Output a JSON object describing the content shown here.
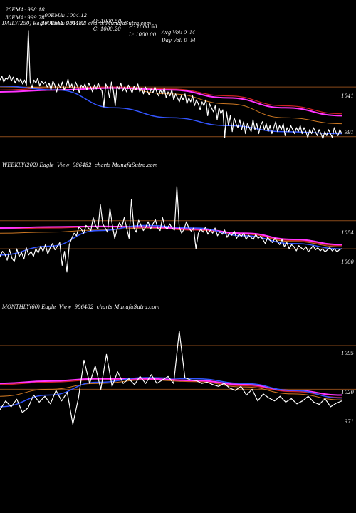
{
  "header": {
    "row1": [
      "20EMA: 998.18",
      "100EMA: 1004.12",
      "O: 1000.50",
      "H: 1000.50",
      "Avg Vol: 0  M"
    ],
    "row2": [
      "30EMA: 999.78",
      "200EMA: 1011.41",
      "C: 1000.20",
      "L: 1000.00",
      "Day Vol: 0  M"
    ]
  },
  "colors": {
    "price": "#ffffff",
    "ema_blue": "#3355ff",
    "ema_magenta": "#ff33ff",
    "ema_red": "#cc2222",
    "ema_orange": "#cc7722",
    "ema_gray": "#aaaaaa",
    "level_line": "#8a4a1a"
  },
  "chart_data": [
    {
      "type": "line",
      "title": "DAILY(250) Eagle  View  986482  charts MunafaSutra.com",
      "levels": [
        1041,
        991
      ],
      "level_labels": [
        "1041",
        "991"
      ],
      "ylim": [
        985,
        1100
      ],
      "price": [
        1048,
        1052,
        1046,
        1050,
        1049,
        1053,
        1047,
        1051,
        1045,
        1050,
        1046,
        1049,
        1044,
        1048,
        1043,
        1098,
        1046,
        1040,
        1048,
        1045,
        1050,
        1042,
        1047,
        1044,
        1046,
        1041,
        1045,
        1038,
        1047,
        1043,
        1036,
        1044,
        1040,
        1046,
        1038,
        1042,
        1049,
        1040,
        1044,
        1037,
        1046,
        1042,
        1035,
        1043,
        1040,
        1044,
        1038,
        1045,
        1041,
        1036,
        1043,
        1039,
        1045,
        1040,
        1037,
        1021,
        1044,
        1040,
        1030,
        1046,
        1038,
        1022,
        1042,
        1039,
        1045,
        1037,
        1041,
        1036,
        1043,
        1039,
        1035,
        1042,
        1038,
        1044,
        1036,
        1040,
        1034,
        1041,
        1037,
        1033,
        1039,
        1035,
        1041,
        1036,
        1032,
        1038,
        1034,
        1040,
        1030,
        1036,
        1032,
        1038,
        1028,
        1034,
        1030,
        1026,
        1032,
        1028,
        1034,
        1024,
        1030,
        1026,
        1032,
        1022,
        1028,
        1024,
        1018,
        1026,
        1022,
        1028,
        1012,
        1024,
        1020,
        1016,
        1022,
        1008,
        1020,
        1014,
        1018,
        990,
        1016,
        1002,
        1012,
        996,
        1010,
        1004,
        1000,
        1008,
        998,
        1006,
        994,
        1004,
        1000,
        996,
        1008,
        998,
        1004,
        994,
        1002,
        1006,
        998,
        1004,
        996,
        1002,
        994,
        1000,
        1006,
        996,
        1002,
        998,
        1004,
        992,
        1000,
        996,
        1002,
        998,
        994,
        1000,
        996,
        1002,
        994,
        1000,
        996,
        990,
        998,
        994,
        1000,
        996,
        992,
        998,
        994,
        989,
        996,
        992,
        998,
        994,
        990,
        1000,
        995,
        992,
        998,
        994
      ],
      "ema_blue": [
        1042,
        1038,
        1020,
        1010,
        1002,
        996,
        994
      ],
      "ema_magenta": [
        1036,
        1038,
        1040,
        1038,
        1030,
        1020,
        1012
      ],
      "ema_red": [
        1038,
        1040,
        1041,
        1039,
        1032,
        1022,
        1014
      ],
      "ema_orange": [
        1040,
        1041,
        1040,
        1034,
        1024,
        1010,
        1004
      ]
    },
    {
      "type": "line",
      "title": "WEEKLY(202) Eagle  View  986482  charts MunafaSutra.com",
      "levels": [
        1054,
        1000
      ],
      "level_labels": [
        "1054",
        "1000"
      ],
      "ylim": [
        930,
        1150
      ],
      "price": [
        985,
        995,
        990,
        978,
        998,
        982,
        975,
        1000,
        985,
        993,
        980,
        1002,
        988,
        995,
        985,
        1000,
        992,
        1005,
        995,
        1008,
        990,
        1002,
        1010,
        998,
        1005,
        1012,
        968,
        995,
        955,
        1008,
        1020,
        1030,
        1025,
        1042,
        1038,
        1030,
        1045,
        1040,
        1035,
        1060,
        1044,
        1038,
        1085,
        1048,
        1040,
        1032,
        1078,
        1045,
        1020,
        1038,
        1050,
        1042,
        1060,
        1040,
        1020,
        1095,
        1040,
        1032,
        1055,
        1045,
        1035,
        1042,
        1052,
        1038,
        1048,
        1056,
        1040,
        1035,
        1060,
        1042,
        1038,
        1048,
        1040,
        1036,
        1120,
        1042,
        1030,
        1038,
        1052,
        1040,
        1034,
        1040,
        1000,
        1030,
        1038,
        1032,
        1042,
        1028,
        1036,
        1030,
        1040,
        1025,
        1033,
        1028,
        1036,
        1022,
        1030,
        1026,
        1034,
        1020,
        1028,
        1024,
        1030,
        1018,
        1026,
        1022,
        1018,
        1028,
        1020,
        1024,
        1018,
        1010,
        1022,
        1016,
        1012,
        1020,
        1014,
        1008,
        1018,
        1004,
        1012,
        1000,
        1008,
        1004,
        996,
        1006,
        1002,
        998,
        1004,
        994,
        1000,
        1006,
        998,
        1002,
        996,
        1000,
        994,
        998,
        1002,
        996,
        1000,
        994,
        998,
        1000
      ],
      "ema_blue": [
        988,
        1005,
        1035,
        1045,
        1040,
        1025,
        1010,
        1000
      ],
      "ema_magenta": [
        1040,
        1042,
        1043,
        1042,
        1038,
        1030,
        1018,
        1008
      ],
      "ema_red": [
        1038,
        1040,
        1042,
        1041,
        1036,
        1028,
        1016,
        1006
      ],
      "ema_orange": [
        1030,
        1032,
        1036,
        1040,
        1036,
        1028,
        1014,
        1004
      ]
    },
    {
      "type": "line",
      "title": "MONTHLY(60) Eagle  View  986482  charts MunafaSutra.com",
      "levels": [
        1095,
        1020,
        971
      ],
      "level_labels": [
        "1095",
        "1020",
        "971"
      ],
      "ylim": [
        930,
        1150
      ],
      "price": [
        985,
        1000,
        990,
        1003,
        980,
        988,
        1010,
        998,
        1008,
        995,
        1018,
        1000,
        1015,
        960,
        1005,
        1070,
        1030,
        1060,
        1020,
        1080,
        1025,
        1050,
        1030,
        1038,
        1028,
        1042,
        1030,
        1045,
        1030,
        1036,
        1042,
        1030,
        1120,
        1040,
        1036,
        1035,
        1030,
        1032,
        1028,
        1025,
        1030,
        1022,
        1018,
        1025,
        1010,
        1020,
        1000,
        1012,
        1005,
        1000,
        1008,
        998,
        1004,
        995,
        1000,
        1008,
        998,
        994,
        1004,
        990,
        996,
        1000
      ],
      "ema_blue": [
        990,
        1010,
        1032,
        1040,
        1038,
        1030,
        1018,
        1005
      ],
      "ema_magenta": [
        1030,
        1034,
        1038,
        1038,
        1035,
        1028,
        1018,
        1010
      ],
      "ema_red": [
        1028,
        1032,
        1036,
        1037,
        1034,
        1026,
        1016,
        1006
      ],
      "ema_orange": [
        1008,
        1020,
        1030,
        1036,
        1033,
        1024,
        1012,
        1002
      ]
    }
  ]
}
